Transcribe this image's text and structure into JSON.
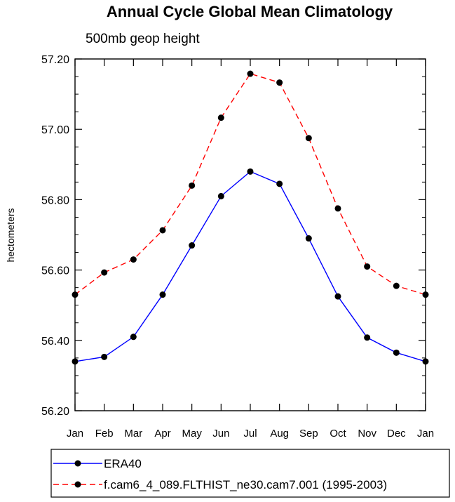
{
  "chart_data": {
    "type": "line",
    "title": "Annual Cycle Global Mean Climatology",
    "subtitle": "500mb geop height",
    "ylabel": "hectometers",
    "xlabel": "",
    "categories": [
      "Jan",
      "Feb",
      "Mar",
      "Apr",
      "May",
      "Jun",
      "Jul",
      "Aug",
      "Sep",
      "Oct",
      "Nov",
      "Dec",
      "Jan"
    ],
    "ylim": [
      56.2,
      57.2
    ],
    "yticks": [
      "56.20",
      "56.40",
      "56.60",
      "56.80",
      "57.00",
      "57.20"
    ],
    "legend_position": "bottom",
    "series": [
      {
        "name": "ERA40",
        "color": "#0000ff",
        "dash": "solid",
        "values": [
          56.34,
          56.353,
          56.41,
          56.53,
          56.67,
          56.81,
          56.88,
          56.845,
          56.69,
          56.525,
          56.408,
          56.365,
          56.34
        ]
      },
      {
        "name": "f.cam6_4_089.FLTHIST_ne30.cam7.001 (1995-2003)",
        "color": "#ff0000",
        "dash": "dashed",
        "values": [
          56.53,
          56.593,
          56.63,
          56.713,
          56.84,
          57.033,
          57.158,
          57.133,
          56.975,
          56.775,
          56.61,
          56.555,
          56.53
        ]
      }
    ]
  }
}
